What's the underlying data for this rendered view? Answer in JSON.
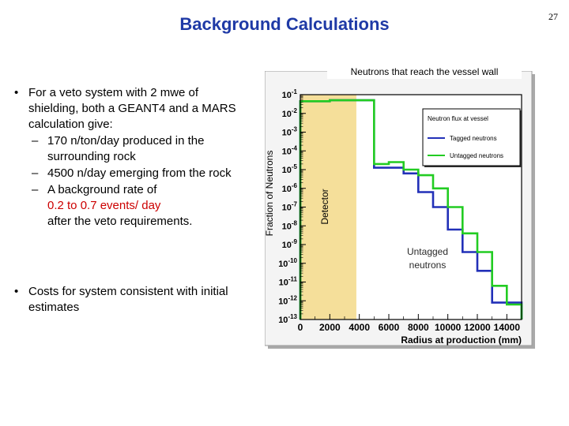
{
  "slide": {
    "title": "Background Calculations",
    "page_number": "27"
  },
  "bullets": {
    "first": "For a veto system with 2 mwe of shielding, both a GEANT4 and a MARS calculation give:",
    "sub1": "170 n/ton/day produced in the surrounding rock",
    "sub2": "4500 n/day emerging from the rock",
    "sub3_prefix": "A background rate of",
    "sub3_red": "0.2 to 0.7 events/ day",
    "sub3_suffix": "after the veto requirements.",
    "second": "Costs for system consistent with initial estimates"
  },
  "chart_data": {
    "type": "line",
    "caption": "Neutrons that reach the vessel wall",
    "ylabel": "Fraction of Neutrons",
    "xlabel": "Radius at production (mm)",
    "y_scale": "log",
    "xlim": [
      0,
      15000
    ],
    "ylim_exponent": [
      -13,
      -1
    ],
    "x_ticks": [
      "0",
      "2000",
      "4000",
      "6000",
      "8000",
      "10000",
      "12000",
      "14000"
    ],
    "y_ticks": [
      "10-13",
      "10-12",
      "10-11",
      "10-10",
      "10-9",
      "10-8",
      "10-7",
      "10-6",
      "10-5",
      "10-4",
      "10-3",
      "10-2",
      "10-1"
    ],
    "detector_region": {
      "label": "Detector",
      "x_start": 0,
      "x_end": 3800
    },
    "annotation": "Untagged neutrons",
    "legend": {
      "placement": "top-right",
      "title": "Neutron flux at vessel",
      "entries": [
        "Tagged neutrons",
        "Untagged neutrons"
      ]
    },
    "bin_width": 1000,
    "series": [
      {
        "name": "Tagged neutrons",
        "color": "#2230b8",
        "bin_starts": [
          0,
          1000,
          2000,
          3000,
          4000,
          5000,
          6000,
          7000,
          8000,
          9000,
          10000,
          11000,
          12000,
          13000,
          14000
        ],
        "log10_values": [
          -1.35,
          -1.35,
          -1.3,
          -1.3,
          -1.3,
          -4.9,
          -4.9,
          -5.2,
          -6.2,
          -7.0,
          -8.2,
          -9.4,
          -10.4,
          -12.1,
          -12.1
        ]
      },
      {
        "name": "Untagged neutrons",
        "color": "#22cc22",
        "bin_starts": [
          0,
          1000,
          2000,
          3000,
          4000,
          5000,
          6000,
          7000,
          8000,
          9000,
          10000,
          11000,
          12000,
          13000,
          14000
        ],
        "log10_values": [
          -1.35,
          -1.35,
          -1.3,
          -1.3,
          -1.3,
          -4.7,
          -4.6,
          -5.0,
          -5.3,
          -6.0,
          -7.0,
          -8.4,
          -9.4,
          -11.2,
          -12.2
        ]
      }
    ]
  }
}
